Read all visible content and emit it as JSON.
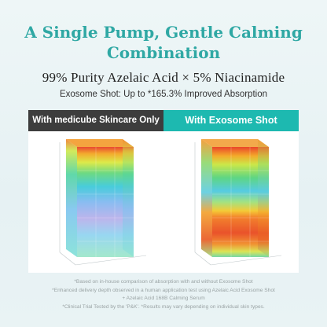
{
  "title_lines": [
    "A Single Pump, Gentle Calming",
    "Combination"
  ],
  "subtitle": "99% Purity Azelaic Acid × 5% Niacinamide",
  "tagline": "Exosome Shot: Up to *165.3% Improved Absorption",
  "panels": [
    {
      "label": "With medicube Skincare Only"
    },
    {
      "label": "With Exosome Shot"
    }
  ],
  "footnotes": [
    "*Based on in-house comparison of absorption with and without Exosome Shot",
    "*Enhanced delivery depth observed in a human application test using Azelaic Acid Exosome Shot",
    "+ Azelaic Acid 168B Calming Serum",
    "*Clinical Trial Tested by the 'P&K'. *Results may vary depending on individual skin types."
  ],
  "colors": {
    "title": "#2fa8a4",
    "left_header": "#3d3d3d",
    "right_header": "#1db9b0"
  }
}
